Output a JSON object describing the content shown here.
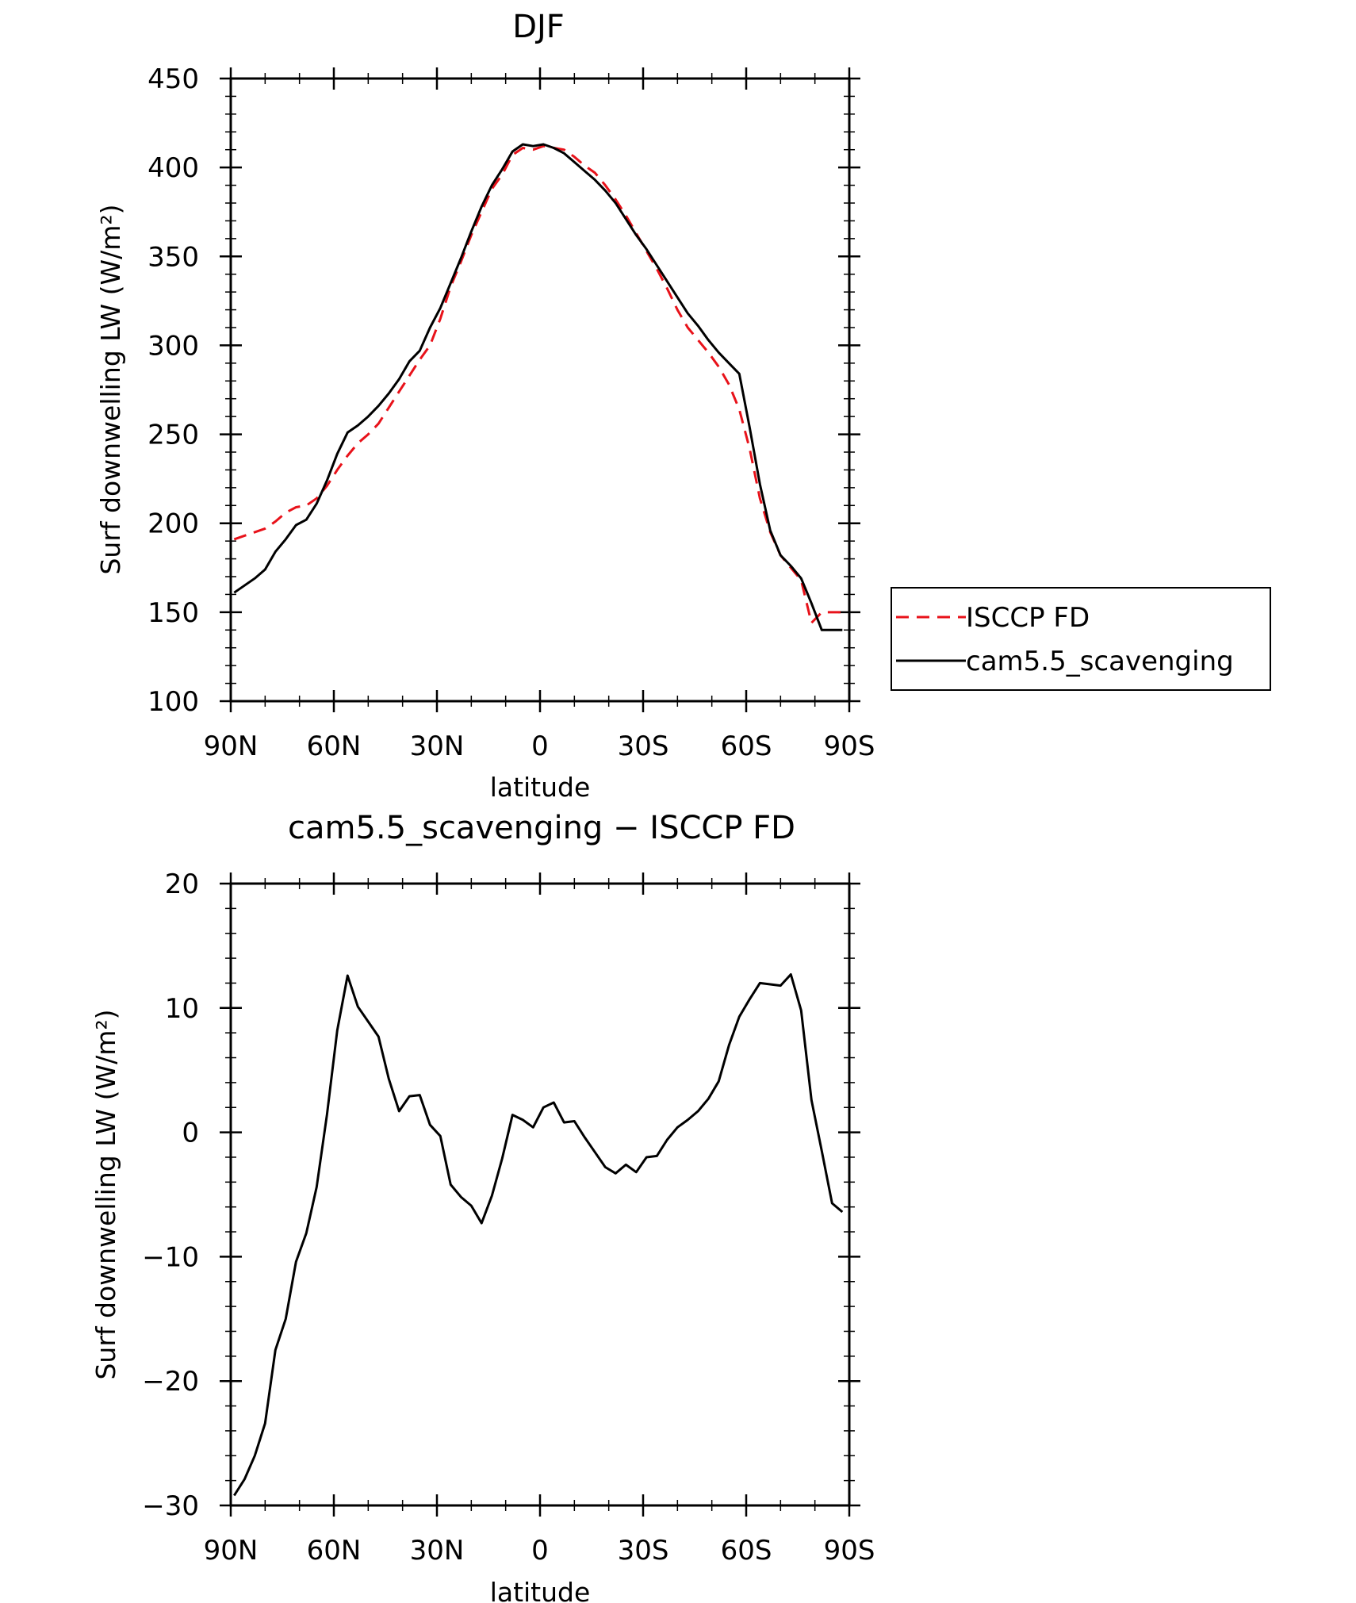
{
  "chart_data": [
    {
      "type": "line",
      "title": "DJF",
      "xlabel": "latitude",
      "ylabel": "Surf downwelling LW (W/m²)",
      "xlim": [
        90,
        -90
      ],
      "ylim": [
        100,
        450
      ],
      "x_ticks": [
        90,
        60,
        30,
        0,
        -30,
        -60,
        -90
      ],
      "x_tick_labels": [
        "90N",
        "60N",
        "30N",
        "0",
        "30S",
        "60S",
        "90S"
      ],
      "y_ticks": [
        100,
        150,
        200,
        250,
        300,
        350,
        400,
        450
      ],
      "y_tick_labels": [
        "100",
        "150",
        "200",
        "250",
        "300",
        "350",
        "400",
        "450"
      ],
      "legend": {
        "placement": "right"
      },
      "series": [
        {
          "name": "ISCCP FD",
          "color": "#e8121a",
          "dash": "dashed",
          "x": [
            89,
            86,
            83,
            80,
            77,
            74,
            71,
            68,
            65,
            62,
            59,
            56,
            53,
            50,
            47,
            44,
            41,
            38,
            35,
            32,
            29,
            26,
            23,
            20,
            17,
            14,
            11,
            8,
            5,
            2,
            -1,
            -4,
            -7,
            -10,
            -13,
            -16,
            -19,
            -22,
            -25,
            -28,
            -31,
            -34,
            -37,
            -40,
            -43,
            -46,
            -49,
            -52,
            -55,
            -58,
            -61,
            -64,
            -67,
            -70,
            -73,
            -76,
            -79,
            -82,
            -85,
            -88
          ],
          "y": [
            191,
            193,
            195,
            197,
            201,
            206,
            209,
            210,
            214,
            221,
            230,
            238,
            245,
            250,
            256,
            265,
            274,
            283,
            292,
            300,
            315,
            333,
            347,
            362,
            375,
            388,
            396,
            407,
            411,
            410,
            412,
            411,
            410,
            406,
            401,
            397,
            390,
            382,
            373,
            363,
            353,
            343,
            332,
            320,
            310,
            303,
            296,
            288,
            278,
            264,
            242,
            214,
            195,
            182,
            175,
            168,
            144,
            150,
            150,
            150
          ]
        },
        {
          "name": "cam5.5_scavenging",
          "color": "#000000",
          "dash": "solid",
          "x": [
            89,
            86,
            83,
            80,
            77,
            74,
            71,
            68,
            65,
            62,
            59,
            56,
            53,
            50,
            47,
            44,
            41,
            38,
            35,
            32,
            29,
            26,
            23,
            20,
            17,
            14,
            11,
            8,
            5,
            2,
            -1,
            -4,
            -7,
            -10,
            -13,
            -16,
            -19,
            -22,
            -25,
            -28,
            -31,
            -34,
            -37,
            -40,
            -43,
            -46,
            -49,
            -52,
            -55,
            -58,
            -61,
            -64,
            -67,
            -70,
            -73,
            -76,
            -79,
            -82,
            -85,
            -88
          ],
          "y": [
            161,
            165,
            169,
            174,
            184,
            191,
            199,
            202,
            211,
            224,
            239,
            251,
            255,
            260,
            266,
            273,
            281,
            291,
            297,
            310,
            321,
            335,
            349,
            364,
            378,
            390,
            399,
            409,
            413,
            412,
            413,
            411,
            408,
            403,
            398,
            393,
            387,
            380,
            371,
            362,
            354,
            345,
            336,
            327,
            318,
            311,
            303,
            296,
            290,
            284,
            254,
            222,
            196,
            182,
            176,
            169,
            155,
            140,
            140,
            140
          ]
        }
      ]
    },
    {
      "type": "line",
      "title": "cam5.5_scavenging − ISCCP FD",
      "xlabel": "latitude",
      "ylabel": "Surf downwelling LW (W/m²)",
      "xlim": [
        90,
        -90
      ],
      "ylim": [
        -30,
        20
      ],
      "x_ticks": [
        90,
        60,
        30,
        0,
        -30,
        -60,
        -90
      ],
      "x_tick_labels": [
        "90N",
        "60N",
        "30N",
        "0",
        "30S",
        "60S",
        "90S"
      ],
      "y_ticks": [
        -30,
        -20,
        -10,
        0,
        10,
        20
      ],
      "y_tick_labels": [
        "−30",
        "−20",
        "−10",
        "0",
        "10",
        "20"
      ],
      "series": [
        {
          "color": "#000000",
          "dash": "solid",
          "x": [
            89,
            86,
            83,
            80,
            77,
            74,
            71,
            68,
            65,
            62,
            59,
            56,
            53,
            50,
            47,
            44,
            41,
            38,
            35,
            32,
            29,
            26,
            23,
            20,
            17,
            14,
            11,
            8,
            5,
            2,
            -1,
            -4,
            -7,
            -10,
            -13,
            -16,
            -19,
            -22,
            -25,
            -28,
            -31,
            -34,
            -37,
            -40,
            -43,
            -46,
            -49,
            -52,
            -55,
            -58,
            -61,
            -64,
            -67,
            -70,
            -73,
            -76,
            -79,
            -82,
            -85,
            -88
          ],
          "y": [
            -29.2,
            -27.9,
            -26,
            -23.4,
            -17.5,
            -15,
            -10.4,
            -8.1,
            -4.4,
            1.4,
            8.2,
            12.6,
            10.1,
            8.9,
            7.7,
            4.3,
            1.7,
            2.9,
            3,
            0.6,
            -0.3,
            -4.2,
            -5.2,
            -5.9,
            -7.3,
            -5.1,
            -2.1,
            1.4,
            1,
            0.4,
            2,
            2.4,
            0.8,
            0.9,
            -0.4,
            -1.6,
            -2.8,
            -3.3,
            -2.6,
            -3.2,
            -2,
            -1.9,
            -0.6,
            0.4,
            1,
            1.7,
            2.7,
            4.1,
            7,
            9.3,
            10.7,
            12,
            11.9,
            11.8,
            12.7,
            9.8,
            2.6,
            -1.5,
            -5.7,
            -6.4
          ]
        }
      ]
    }
  ]
}
